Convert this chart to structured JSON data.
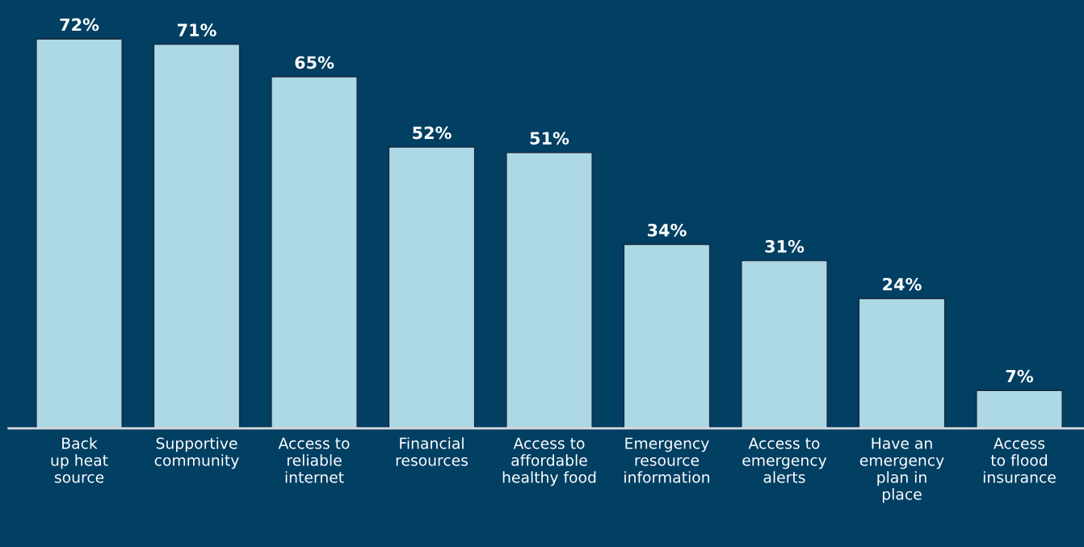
{
  "chart_data": {
    "type": "bar",
    "categories": [
      "Back\nup heat\nsource",
      "Supportive\ncommunity",
      "Access to\nreliable\ninternet",
      "Financial\nresources",
      "Access to\naffordable\nhealthy food",
      "Emergency\nresource\ninformation",
      "Access to\nemergency\nalerts",
      "Have an\nemergency\nplan in\nplace",
      "Access\nto flood\ninsurance"
    ],
    "values": [
      72,
      71,
      65,
      52,
      51,
      34,
      31,
      24,
      7
    ],
    "value_labels": [
      "72%",
      "71%",
      "65%",
      "52%",
      "51%",
      "34%",
      "31%",
      "24%",
      "7%"
    ],
    "color": "#add8e6",
    "grid": false,
    "legend": false,
    "tick_labels": "x"
  }
}
